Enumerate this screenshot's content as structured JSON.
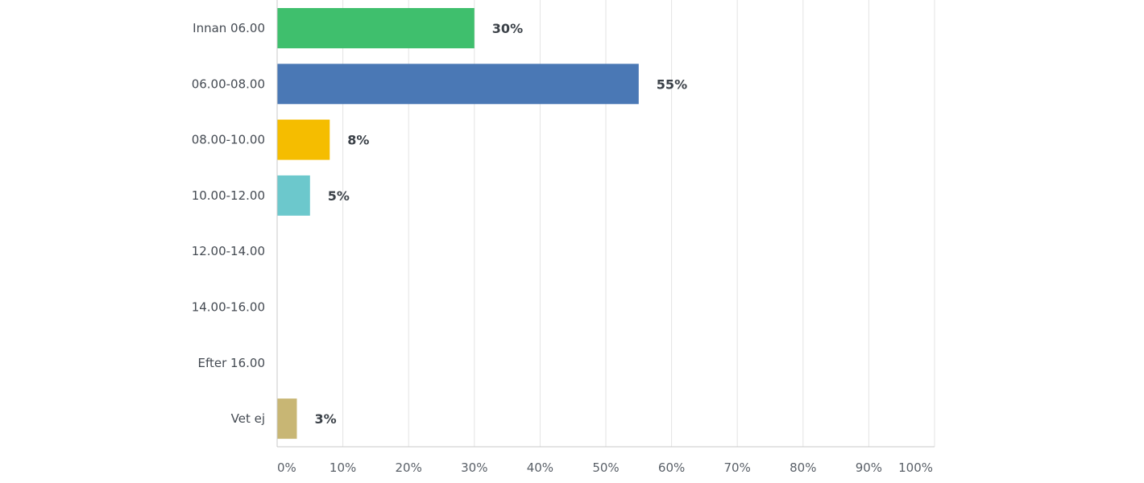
{
  "chart_data": {
    "type": "bar",
    "orientation": "horizontal",
    "categories": [
      "Innan 06.00",
      "06.00-08.00",
      "08.00-10.00",
      "10.00-12.00",
      "12.00-14.00",
      "14.00-16.00",
      "Efter 16.00",
      "Vet ej"
    ],
    "values": [
      30,
      55,
      8,
      5,
      0,
      0,
      0,
      3
    ],
    "value_labels": [
      "30%",
      "55%",
      "8%",
      "5%",
      "",
      "",
      "",
      "3%"
    ],
    "colors": [
      "#3fbf6d",
      "#4a78b5",
      "#f5bd00",
      "#6cc8cc",
      "#cccccc",
      "#cccccc",
      "#cccccc",
      "#c8b674"
    ],
    "xlim": [
      0,
      100
    ],
    "x_ticks": [
      0,
      10,
      20,
      30,
      40,
      50,
      60,
      70,
      80,
      90,
      100
    ],
    "x_tick_labels": [
      "0%",
      "10%",
      "20%",
      "30%",
      "40%",
      "50%",
      "60%",
      "70%",
      "80%",
      "90%",
      "100%"
    ],
    "grid": true,
    "title": "",
    "xlabel": "",
    "ylabel": ""
  }
}
